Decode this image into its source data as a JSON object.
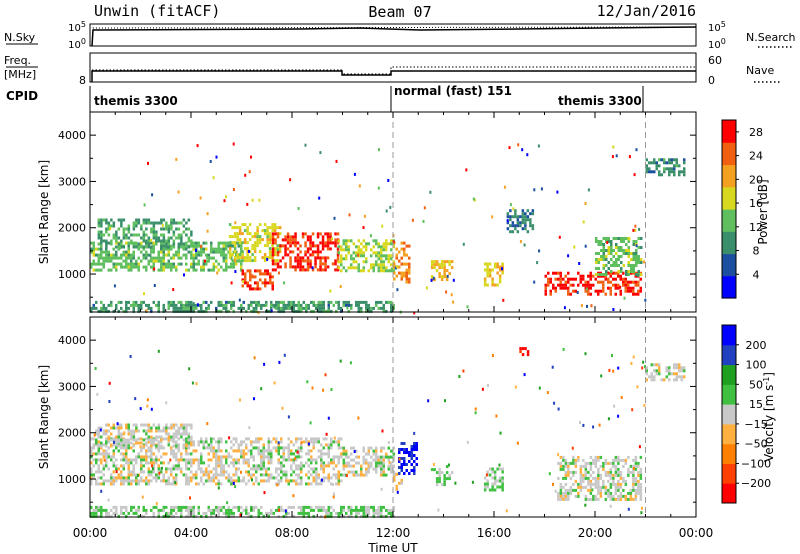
{
  "header": {
    "title": "Unwin (fitACF)",
    "beam": "Beam 07",
    "date": "12/Jan/2016"
  },
  "summary_panels": {
    "nsky": {
      "label": "N.Sky",
      "tick_top": "10^5",
      "tick_bottom": "10^0",
      "right_label": "N.Search"
    },
    "freq": {
      "label_line1": "Freq.",
      "label_line2": "[MHz]",
      "tick_top": "",
      "tick_bottom": "8",
      "right_tick_top": "60",
      "right_tick_bottom": "0",
      "right_label": "Nave"
    },
    "cpid": {
      "label": "CPID",
      "segments": [
        {
          "text": "themis 3300",
          "start_hour": 0
        },
        {
          "text": "normal (fast) 151",
          "start_hour": 12
        },
        {
          "text": "themis 3300",
          "start_hour": 20.4
        }
      ]
    }
  },
  "colors": {
    "power_scale": [
      "#0000ff",
      "#1d4fa0",
      "#3a8f6a",
      "#5fbf5f",
      "#d8d820",
      "#f4a020",
      "#f06010",
      "#ff0000"
    ],
    "velocity_scale": [
      "#ff0000",
      "#ff4000",
      "#ff8000",
      "#ffb040",
      "#c8c8c8",
      "#40c040",
      "#20a020",
      "#2040c0",
      "#0000ff"
    ]
  },
  "chart_data": [
    {
      "type": "heatmap",
      "title": "",
      "xlabel": "",
      "ylabel": "Slant Range [km]",
      "xlim": [
        0,
        24
      ],
      "ylim": [
        180,
        4500
      ],
      "x_ticks": [
        "00:00",
        "04:00",
        "08:00",
        "12:00",
        "16:00",
        "20:00",
        "00:00"
      ],
      "y_ticks": [
        1000,
        2000,
        3000,
        4000
      ],
      "colorbar": {
        "label": "Power [dB]",
        "ticks": [
          4,
          8,
          12,
          16,
          20,
          24,
          28
        ],
        "range": [
          0,
          30
        ]
      },
      "regions": [
        {
          "t0": 0.0,
          "t1": 6.0,
          "r0": 1100,
          "r1": 1700,
          "value": 13
        },
        {
          "t0": 0.3,
          "t1": 4.0,
          "r0": 1600,
          "r1": 2200,
          "value": 11
        },
        {
          "t0": 5.5,
          "t1": 7.5,
          "r0": 1300,
          "r1": 2100,
          "value": 17
        },
        {
          "t0": 6.0,
          "t1": 7.2,
          "r0": 650,
          "r1": 1100,
          "value": 26
        },
        {
          "t0": 7.2,
          "t1": 9.8,
          "r0": 1100,
          "r1": 1900,
          "value": 27
        },
        {
          "t0": 9.8,
          "t1": 12.0,
          "r0": 1100,
          "r1": 1750,
          "value": 15
        },
        {
          "t0": 12.0,
          "t1": 12.6,
          "r0": 800,
          "r1": 1700,
          "value": 22
        },
        {
          "t0": 13.5,
          "t1": 14.3,
          "r0": 900,
          "r1": 1300,
          "value": 19
        },
        {
          "t0": 15.5,
          "t1": 16.3,
          "r0": 750,
          "r1": 1250,
          "value": 18
        },
        {
          "t0": 16.5,
          "t1": 17.5,
          "r0": 1900,
          "r1": 2400,
          "value": 8
        },
        {
          "t0": 18.0,
          "t1": 21.8,
          "r0": 550,
          "r1": 1050,
          "value": 27
        },
        {
          "t0": 20.0,
          "t1": 21.8,
          "r0": 1000,
          "r1": 1800,
          "value": 13
        },
        {
          "t0": 22.0,
          "t1": 23.5,
          "r0": 3150,
          "r1": 3500,
          "value": 9
        },
        {
          "t0": 0.0,
          "t1": 12.0,
          "r0": 200,
          "r1": 420,
          "value": 10
        }
      ]
    },
    {
      "type": "heatmap",
      "title": "",
      "xlabel": "Time UT",
      "ylabel": "Slant Range [km]",
      "xlim": [
        0,
        24
      ],
      "ylim": [
        180,
        4500
      ],
      "x_ticks": [
        "00:00",
        "04:00",
        "08:00",
        "12:00",
        "16:00",
        "20:00",
        "00:00"
      ],
      "y_ticks": [
        1000,
        2000,
        3000,
        4000
      ],
      "colorbar": {
        "label": "Velocity [m s^-1]",
        "ticks": [
          -200,
          -100,
          -50,
          -15,
          15,
          50,
          100,
          200
        ],
        "range": [
          -250,
          250
        ]
      },
      "regions": [
        {
          "t0": 0.0,
          "t1": 10.0,
          "r0": 900,
          "r1": 1900,
          "value": 0
        },
        {
          "t0": 0.2,
          "t1": 4.0,
          "r0": 1700,
          "r1": 2200,
          "value": 0
        },
        {
          "t0": 10.0,
          "t1": 12.0,
          "r0": 1100,
          "r1": 1700,
          "value": 0
        },
        {
          "t0": 12.2,
          "t1": 12.9,
          "r0": 1100,
          "r1": 1800,
          "value": 210
        },
        {
          "t0": 12.0,
          "t1": 12.3,
          "r0": 800,
          "r1": 1200,
          "value": -60
        },
        {
          "t0": 13.5,
          "t1": 14.3,
          "r0": 900,
          "r1": 1300,
          "value": 40
        },
        {
          "t0": 15.5,
          "t1": 16.3,
          "r0": 750,
          "r1": 1250,
          "value": 35
        },
        {
          "t0": 17.0,
          "t1": 17.3,
          "r0": 3700,
          "r1": 3850,
          "value": -220
        },
        {
          "t0": 18.5,
          "t1": 21.8,
          "r0": 550,
          "r1": 1500,
          "value": 0
        },
        {
          "t0": 22.0,
          "t1": 23.5,
          "r0": 3150,
          "r1": 3500,
          "value": 0
        },
        {
          "t0": 0.0,
          "t1": 12.0,
          "r0": 200,
          "r1": 420,
          "value": 30
        }
      ]
    }
  ]
}
